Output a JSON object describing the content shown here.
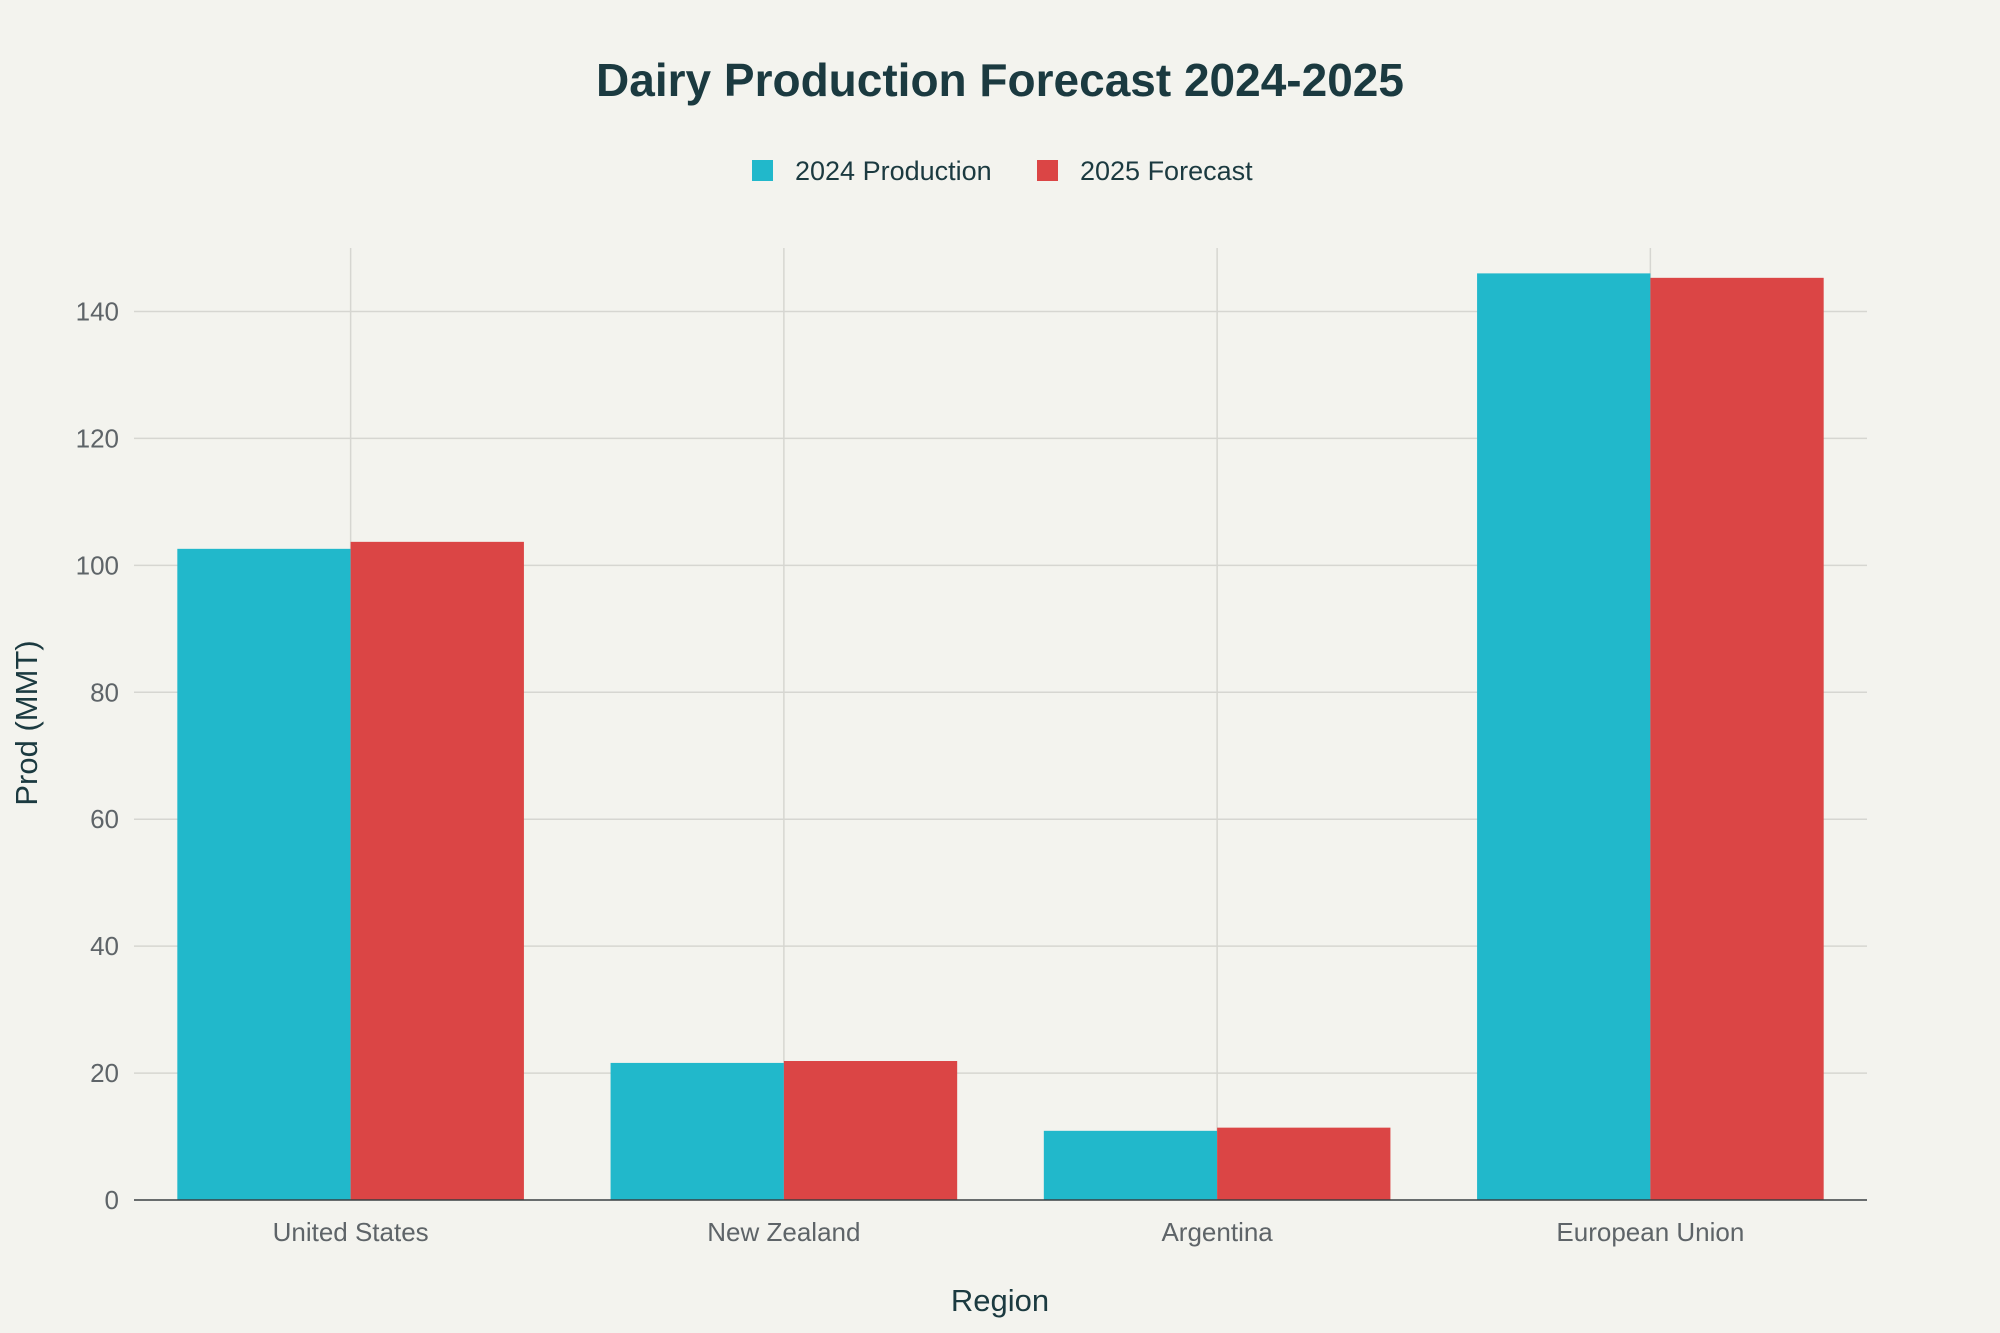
{
  "chart_data": {
    "type": "bar",
    "title": "Dairy Production Forecast 2024-2025",
    "xlabel": "Region",
    "ylabel": "Prod (MMT)",
    "categories": [
      "United States",
      "New Zealand",
      "Argentina",
      "European Union"
    ],
    "series": [
      {
        "name": "2024 Production",
        "color": "#21b8cb",
        "values": [
          102.6,
          21.6,
          10.9,
          146.0
        ]
      },
      {
        "name": "2025 Forecast",
        "color": "#db4545",
        "values": [
          103.7,
          21.9,
          11.4,
          145.3
        ]
      }
    ],
    "ylim": [
      0,
      150
    ],
    "yticks": [
      0,
      20,
      40,
      60,
      80,
      100,
      120,
      140
    ],
    "grid": true,
    "legend_position": "top-center"
  }
}
